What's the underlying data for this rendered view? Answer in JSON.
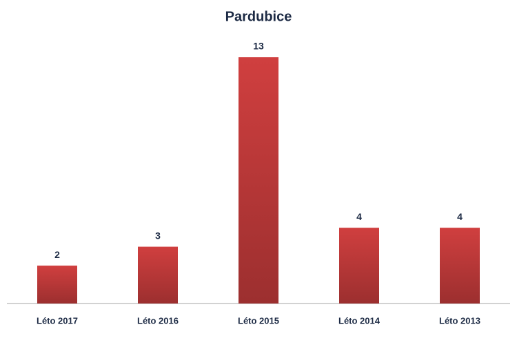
{
  "chart_data": {
    "type": "bar",
    "title": "Pardubice",
    "categories": [
      "Léto 2017",
      "Léto 2016",
      "Léto 2015",
      "Léto 2014",
      "Léto 2013"
    ],
    "values": [
      2,
      3,
      13,
      4,
      4
    ],
    "color": "#d03f3f"
  }
}
